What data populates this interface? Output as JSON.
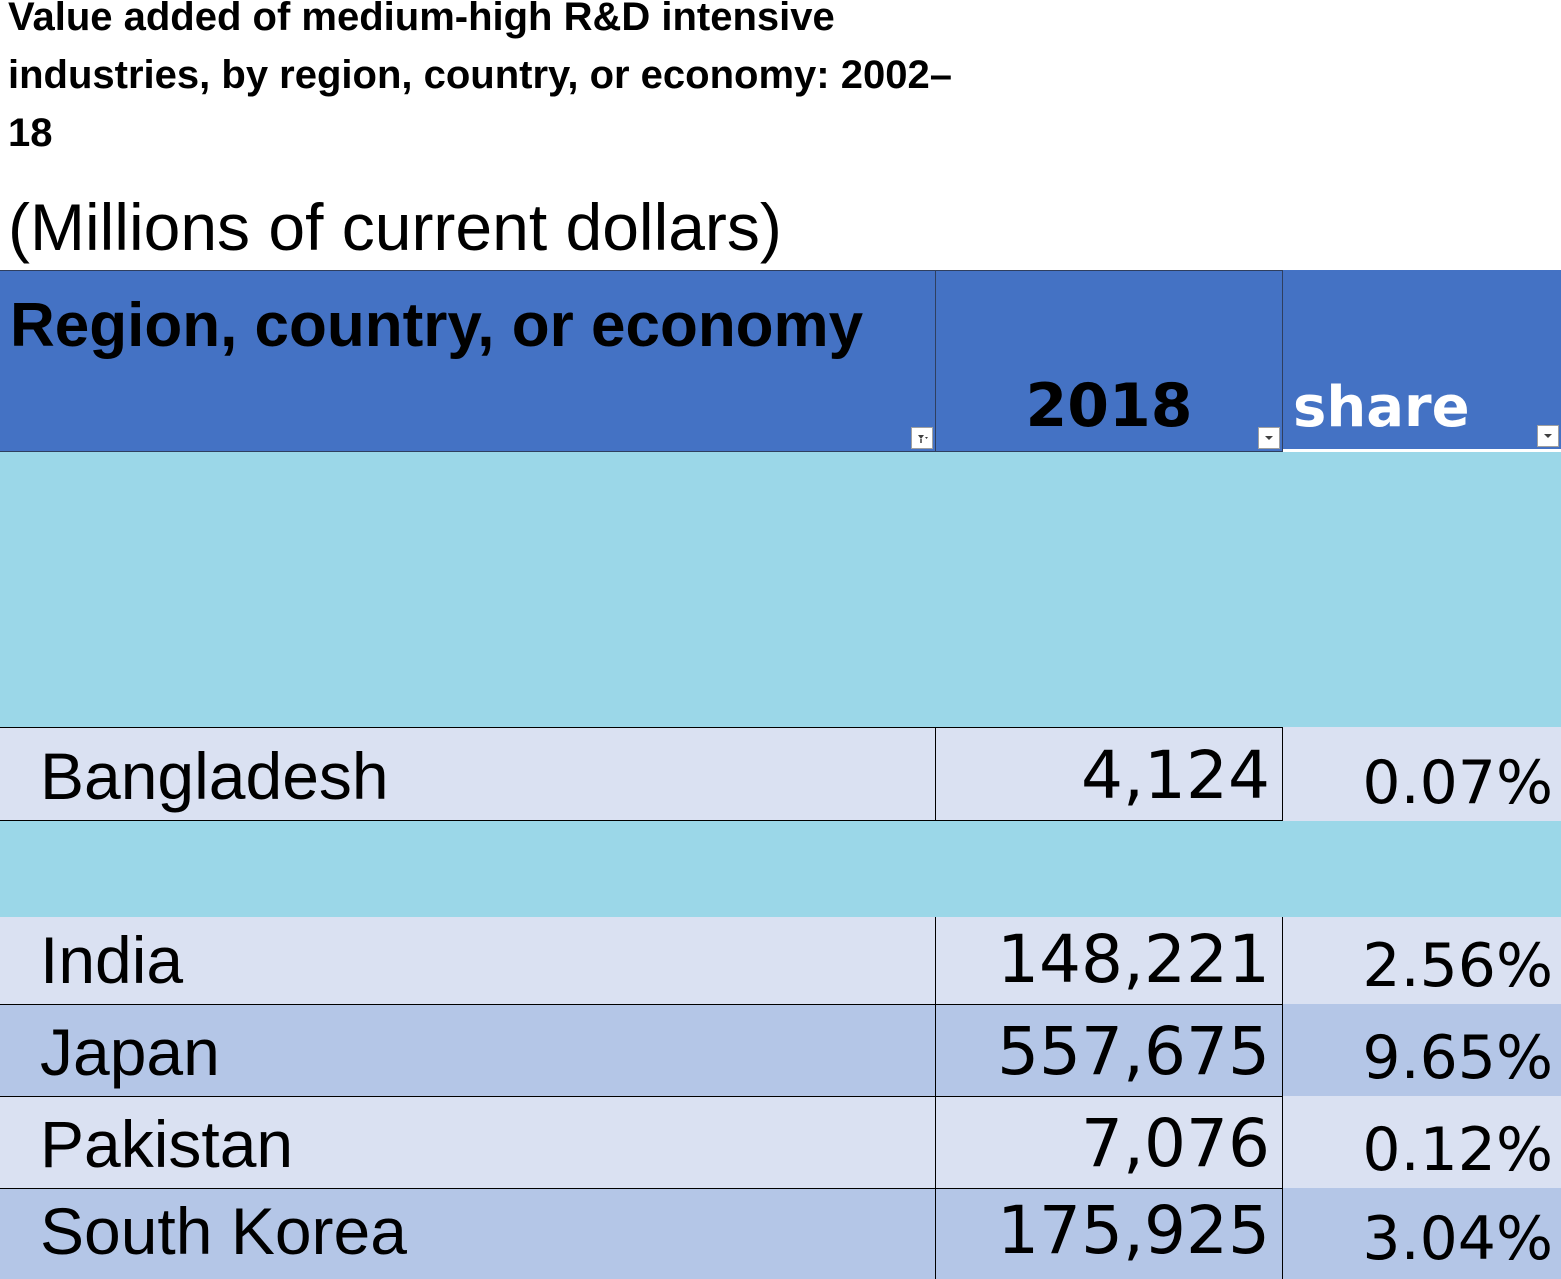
{
  "title": "Value added of medium-high R&D intensive industries, by region, country, or economy: 2002–18",
  "subtitle": "(Millions of current dollars)",
  "colors": {
    "header": "#4472c4",
    "band": "#9bd7e8",
    "row_light": "#dae1f2",
    "row_dark": "#b4c6e7"
  },
  "chart_data": {
    "type": "table",
    "title": "Value added of medium-high R&D intensive industries, by region, country, or economy: 2002–18",
    "subtitle": "(Millions of current dollars)",
    "columns": [
      "Region, country, or economy",
      "2018",
      "share"
    ],
    "rows": [
      {
        "name": "Bangladesh",
        "value": 4124,
        "value_label": "4,124",
        "share": 0.07,
        "share_label": "0.07%"
      },
      {
        "name": "India",
        "value": 148221,
        "value_label": "148,221",
        "share": 2.56,
        "share_label": "2.56%"
      },
      {
        "name": "Japan",
        "value": 557675,
        "value_label": "557,675",
        "share": 9.65,
        "share_label": "9.65%"
      },
      {
        "name": "Pakistan",
        "value": 7076,
        "value_label": "7,076",
        "share": 0.12,
        "share_label": "0.12%"
      },
      {
        "name": "South Korea",
        "value": 175925,
        "value_label": "175,925",
        "share": 3.04,
        "share_label": "3.04%"
      }
    ]
  }
}
